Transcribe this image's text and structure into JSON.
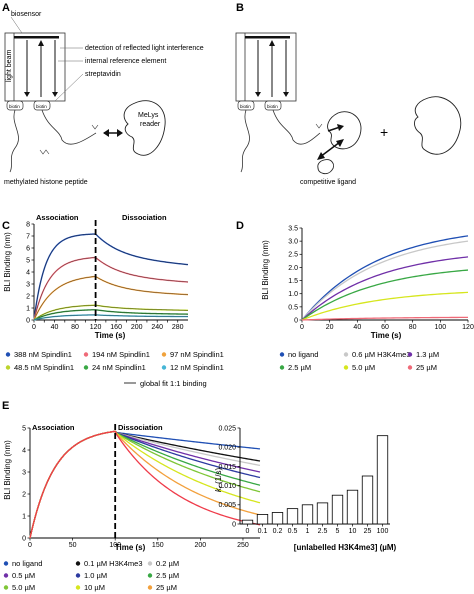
{
  "panel_labels": {
    "a": "A",
    "b": "B",
    "c": "C",
    "d": "D",
    "e": "E"
  },
  "schematic": {
    "biosensor": "biosensor",
    "light_beam": "light beam",
    "detection": "detection of reflected light interference",
    "internal_ref": "internal reference element",
    "streptavidin": "streptavidin",
    "biotin": "biotin",
    "reader_line1": "MeLys",
    "reader_line2": "reader",
    "peptide": "methylated histone peptide",
    "competitive": "competitive ligand",
    "plus": "+"
  },
  "phases": {
    "association": "Association",
    "dissociation": "Dissociation"
  },
  "legend_c": [
    {
      "label": "388 nM Spindlin1",
      "color": "#1f4fb4"
    },
    {
      "label": "194 nM Spindlin1",
      "color": "#ef6a78"
    },
    {
      "label": "97 nM Spindlin1",
      "color": "#f0a23c"
    },
    {
      "label": "48.5 nM Spindlin1",
      "color": "#bcd42c"
    },
    {
      "label": "24 nM Spindlin1",
      "color": "#39a845"
    },
    {
      "label": "12 nM Spindlin1",
      "color": "#46b6d6"
    }
  ],
  "legend_c_fit": "global fit 1:1 binding",
  "legend_d": [
    {
      "label": "no ligand",
      "color": "#1f4fb4"
    },
    {
      "label": "0.6 µM H3K4me3",
      "color": "#c8c8c8"
    },
    {
      "label": "1.3 µM",
      "color": "#7030a8"
    },
    {
      "label": "2.5 µM",
      "color": "#39a845"
    },
    {
      "label": "5.0 µM",
      "color": "#d6e61e"
    },
    {
      "label": "25 µM",
      "color": "#ef6a78"
    }
  ],
  "legend_e": [
    {
      "label": "no ligand",
      "color": "#1f4fb4"
    },
    {
      "label": "0.1 µM H3K4me3",
      "color": "#111111"
    },
    {
      "label": "0.2 µM",
      "color": "#c8c8c8"
    },
    {
      "label": "0.5 µM",
      "color": "#7030a8"
    },
    {
      "label": "1.0 µM",
      "color": "#2c3aa0"
    },
    {
      "label": "2.5 µM",
      "color": "#39a845"
    },
    {
      "label": "5.0 µM",
      "color": "#7fc637"
    },
    {
      "label": "10 µM",
      "color": "#d6e61e"
    },
    {
      "label": "25 µM",
      "color": "#f2a03c"
    },
    {
      "label": "100 µM",
      "color": "#ef3b4a"
    }
  ],
  "chart_data": [
    {
      "panel": "C",
      "type": "line",
      "xlabel": "Time (s)",
      "ylabel": "BLI Binding (nm)",
      "xlim": [
        0,
        300
      ],
      "ylim": [
        0,
        8
      ],
      "xticks": [
        0,
        20,
        40,
        60,
        80,
        100,
        120,
        140,
        160,
        180,
        200,
        220,
        240,
        260,
        280
      ],
      "xticklabels": [
        "0",
        "",
        "40",
        "",
        "80",
        "",
        "120",
        "",
        "160",
        "",
        "200",
        "",
        "240",
        "",
        "280"
      ],
      "yticks": [
        0,
        1,
        2,
        3,
        4,
        5,
        6,
        7,
        8
      ],
      "switch_time": 120,
      "series": [
        {
          "name": "388 nM Spindlin1",
          "color": "#1f4fb4",
          "max": 7.2,
          "kon": 0.045,
          "end": 5.7
        },
        {
          "name": "194 nM Spindlin1",
          "color": "#ef6a78",
          "max": 5.3,
          "kon": 0.034,
          "end": 3.9
        },
        {
          "name": "97 nM Spindlin1",
          "color": "#f0a23c",
          "max": 3.8,
          "kon": 0.026,
          "end": 2.6
        },
        {
          "name": "48.5 nM Spindlin1",
          "color": "#bcd42c",
          "max": 1.3,
          "kon": 0.025,
          "end": 1.0
        },
        {
          "name": "24 nM Spindlin1",
          "color": "#39a845",
          "max": 0.9,
          "kon": 0.025,
          "end": 0.6
        },
        {
          "name": "12 nM Spindlin1",
          "color": "#46b6d6",
          "max": 0.45,
          "kon": 0.025,
          "end": 0.35
        }
      ]
    },
    {
      "panel": "D",
      "type": "line",
      "xlabel": "Time (s)",
      "ylabel": "BLI Binding (nm)",
      "xlim": [
        0,
        120
      ],
      "ylim": [
        0,
        3.5
      ],
      "xticks": [
        0,
        20,
        40,
        60,
        80,
        100,
        120
      ],
      "yticks": [
        0,
        0.5,
        1.0,
        1.5,
        2.0,
        2.5,
        3.0,
        3.5
      ],
      "yticklabels": [
        "0",
        "0.5",
        "1.0",
        "1.5",
        "2.0",
        "2.5",
        "3.0",
        "3.5"
      ],
      "series": [
        {
          "name": "no ligand",
          "color": "#1f4fb4",
          "end": 3.2
        },
        {
          "name": "0.6 µM H3K4me3",
          "color": "#c8c8c8",
          "end": 3.0
        },
        {
          "name": "1.3 µM",
          "color": "#7030a8",
          "end": 2.4
        },
        {
          "name": "2.5 µM",
          "color": "#39a845",
          "end": 1.9
        },
        {
          "name": "5.0 µM",
          "color": "#d6e61e",
          "end": 1.05
        },
        {
          "name": "25 µM",
          "color": "#ef6a78",
          "end": 0.1
        }
      ]
    },
    {
      "panel": "E-left",
      "type": "line",
      "xlabel": "Time (s)",
      "ylabel": "BLI Binding (nm)",
      "xlim": [
        0,
        270
      ],
      "ylim": [
        0,
        5
      ],
      "xticks": [
        0,
        50,
        100,
        150,
        200,
        250
      ],
      "yticks": [
        0,
        1,
        2,
        3,
        4,
        5
      ],
      "switch_time": 100,
      "series": [
        {
          "name": "no ligand",
          "color": "#1f4fb4",
          "end": 4.05
        },
        {
          "name": "0.1 µM H3K4me3",
          "color": "#111111",
          "end": 3.5
        },
        {
          "name": "0.2 µM",
          "color": "#c8c8c8",
          "end": 3.3
        },
        {
          "name": "0.5 µM",
          "color": "#7030a8",
          "end": 3.0
        },
        {
          "name": "1.0 µM",
          "color": "#2c3aa0",
          "end": 2.75
        },
        {
          "name": "2.5 µM",
          "color": "#39a845",
          "end": 2.4
        },
        {
          "name": "5.0 µM",
          "color": "#7fc637",
          "end": 2.1
        },
        {
          "name": "10 µM",
          "color": "#d6e61e",
          "end": 1.6
        },
        {
          "name": "25 µM",
          "color": "#f2a03c",
          "end": 1.05
        },
        {
          "name": "100 µM",
          "color": "#ef3b4a",
          "end": 0.6
        }
      ]
    },
    {
      "panel": "E-right",
      "type": "bar",
      "xlabel": "[unlabelled H3K4me3] (µM)",
      "ylabel": "k (1/s)",
      "ylabel_sub": "r",
      "ylim": [
        0,
        0.025
      ],
      "yticks": [
        0,
        0.005,
        0.01,
        0.015,
        0.02,
        0.025
      ],
      "yticklabels": [
        "0",
        "0.005",
        "0.010",
        "0.015",
        "0.020",
        "0.025"
      ],
      "categories": [
        "0",
        "0.1",
        "0.2",
        "0.5",
        "1",
        "2.5",
        "5",
        "10",
        "25",
        "100"
      ],
      "values": [
        0.001,
        0.0025,
        0.003,
        0.004,
        0.005,
        0.0055,
        0.0075,
        0.0088,
        0.0125,
        0.023
      ]
    }
  ]
}
